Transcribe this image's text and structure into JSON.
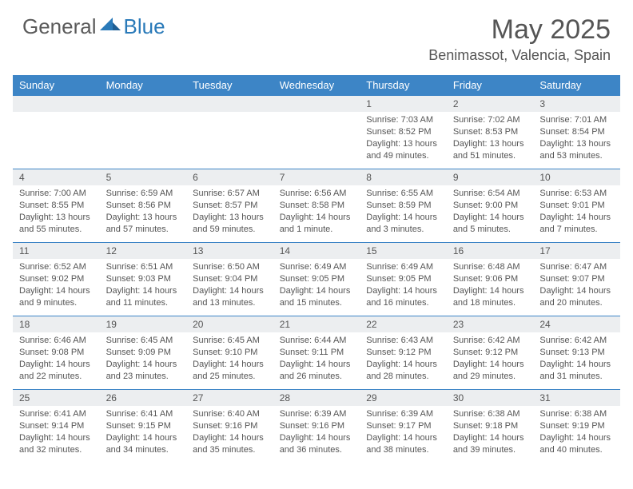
{
  "brand": {
    "part1": "General",
    "part2": "Blue"
  },
  "title": "May 2025",
  "location": "Benimassot, Valencia, Spain",
  "colors": {
    "header_bg": "#3d85c6",
    "header_text": "#ffffff",
    "daynum_bg": "#eceef0",
    "row_divider": "#3d85c6",
    "text": "#555555",
    "brand_gray": "#5a5a5a",
    "brand_blue": "#2a7ab9",
    "page_bg": "#ffffff"
  },
  "typography": {
    "title_fontsize": 34,
    "location_fontsize": 18,
    "weekday_fontsize": 13,
    "daynum_fontsize": 12,
    "body_fontsize": 11
  },
  "weekdays": [
    "Sunday",
    "Monday",
    "Tuesday",
    "Wednesday",
    "Thursday",
    "Friday",
    "Saturday"
  ],
  "weeks": [
    [
      null,
      null,
      null,
      null,
      {
        "n": "1",
        "sunrise": "7:03 AM",
        "sunset": "8:52 PM",
        "daylight": "13 hours and 49 minutes."
      },
      {
        "n": "2",
        "sunrise": "7:02 AM",
        "sunset": "8:53 PM",
        "daylight": "13 hours and 51 minutes."
      },
      {
        "n": "3",
        "sunrise": "7:01 AM",
        "sunset": "8:54 PM",
        "daylight": "13 hours and 53 minutes."
      }
    ],
    [
      {
        "n": "4",
        "sunrise": "7:00 AM",
        "sunset": "8:55 PM",
        "daylight": "13 hours and 55 minutes."
      },
      {
        "n": "5",
        "sunrise": "6:59 AM",
        "sunset": "8:56 PM",
        "daylight": "13 hours and 57 minutes."
      },
      {
        "n": "6",
        "sunrise": "6:57 AM",
        "sunset": "8:57 PM",
        "daylight": "13 hours and 59 minutes."
      },
      {
        "n": "7",
        "sunrise": "6:56 AM",
        "sunset": "8:58 PM",
        "daylight": "14 hours and 1 minute."
      },
      {
        "n": "8",
        "sunrise": "6:55 AM",
        "sunset": "8:59 PM",
        "daylight": "14 hours and 3 minutes."
      },
      {
        "n": "9",
        "sunrise": "6:54 AM",
        "sunset": "9:00 PM",
        "daylight": "14 hours and 5 minutes."
      },
      {
        "n": "10",
        "sunrise": "6:53 AM",
        "sunset": "9:01 PM",
        "daylight": "14 hours and 7 minutes."
      }
    ],
    [
      {
        "n": "11",
        "sunrise": "6:52 AM",
        "sunset": "9:02 PM",
        "daylight": "14 hours and 9 minutes."
      },
      {
        "n": "12",
        "sunrise": "6:51 AM",
        "sunset": "9:03 PM",
        "daylight": "14 hours and 11 minutes."
      },
      {
        "n": "13",
        "sunrise": "6:50 AM",
        "sunset": "9:04 PM",
        "daylight": "14 hours and 13 minutes."
      },
      {
        "n": "14",
        "sunrise": "6:49 AM",
        "sunset": "9:05 PM",
        "daylight": "14 hours and 15 minutes."
      },
      {
        "n": "15",
        "sunrise": "6:49 AM",
        "sunset": "9:05 PM",
        "daylight": "14 hours and 16 minutes."
      },
      {
        "n": "16",
        "sunrise": "6:48 AM",
        "sunset": "9:06 PM",
        "daylight": "14 hours and 18 minutes."
      },
      {
        "n": "17",
        "sunrise": "6:47 AM",
        "sunset": "9:07 PM",
        "daylight": "14 hours and 20 minutes."
      }
    ],
    [
      {
        "n": "18",
        "sunrise": "6:46 AM",
        "sunset": "9:08 PM",
        "daylight": "14 hours and 22 minutes."
      },
      {
        "n": "19",
        "sunrise": "6:45 AM",
        "sunset": "9:09 PM",
        "daylight": "14 hours and 23 minutes."
      },
      {
        "n": "20",
        "sunrise": "6:45 AM",
        "sunset": "9:10 PM",
        "daylight": "14 hours and 25 minutes."
      },
      {
        "n": "21",
        "sunrise": "6:44 AM",
        "sunset": "9:11 PM",
        "daylight": "14 hours and 26 minutes."
      },
      {
        "n": "22",
        "sunrise": "6:43 AM",
        "sunset": "9:12 PM",
        "daylight": "14 hours and 28 minutes."
      },
      {
        "n": "23",
        "sunrise": "6:42 AM",
        "sunset": "9:12 PM",
        "daylight": "14 hours and 29 minutes."
      },
      {
        "n": "24",
        "sunrise": "6:42 AM",
        "sunset": "9:13 PM",
        "daylight": "14 hours and 31 minutes."
      }
    ],
    [
      {
        "n": "25",
        "sunrise": "6:41 AM",
        "sunset": "9:14 PM",
        "daylight": "14 hours and 32 minutes."
      },
      {
        "n": "26",
        "sunrise": "6:41 AM",
        "sunset": "9:15 PM",
        "daylight": "14 hours and 34 minutes."
      },
      {
        "n": "27",
        "sunrise": "6:40 AM",
        "sunset": "9:16 PM",
        "daylight": "14 hours and 35 minutes."
      },
      {
        "n": "28",
        "sunrise": "6:39 AM",
        "sunset": "9:16 PM",
        "daylight": "14 hours and 36 minutes."
      },
      {
        "n": "29",
        "sunrise": "6:39 AM",
        "sunset": "9:17 PM",
        "daylight": "14 hours and 38 minutes."
      },
      {
        "n": "30",
        "sunrise": "6:38 AM",
        "sunset": "9:18 PM",
        "daylight": "14 hours and 39 minutes."
      },
      {
        "n": "31",
        "sunrise": "6:38 AM",
        "sunset": "9:19 PM",
        "daylight": "14 hours and 40 minutes."
      }
    ]
  ],
  "labels": {
    "sunrise": "Sunrise:",
    "sunset": "Sunset:",
    "daylight": "Daylight:"
  }
}
